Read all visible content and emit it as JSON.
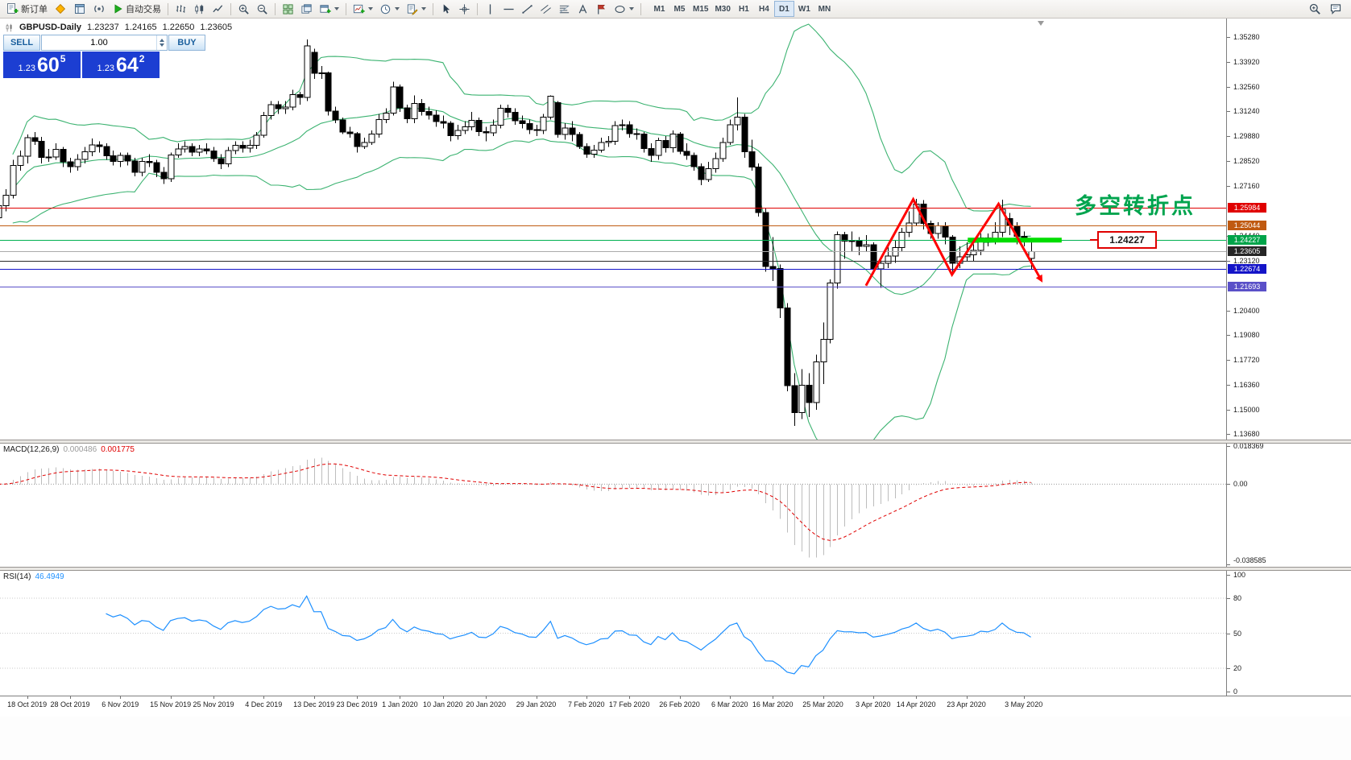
{
  "toolbar": {
    "new_order_label": "新订单",
    "autotrading_label": "自动交易",
    "timeframes": [
      "M1",
      "M5",
      "M15",
      "M30",
      "H1",
      "H4",
      "D1",
      "W1",
      "MN"
    ],
    "active_timeframe": "D1",
    "icons": [
      "new-order",
      "metaeditor",
      "market-watch",
      "broadcast",
      "autotrading",
      "bar-chart",
      "candlestick-chart",
      "line-chart",
      "zoom-in",
      "zoom-out",
      "tile-windows",
      "cascade-windows",
      "new-window",
      "indicators",
      "periods",
      "templates",
      "cursor",
      "crosshair",
      "vertical-line",
      "horizontal-line",
      "trendline",
      "channel",
      "fibonacci",
      "text",
      "label",
      "shapes",
      "search",
      "chat"
    ]
  },
  "chart": {
    "title_symbol": "GBPUSD-Daily",
    "ohlc": {
      "open": "1.23237",
      "high": "1.24165",
      "low": "1.22650",
      "close": "1.23605"
    }
  },
  "trade_panel": {
    "sell_label": "SELL",
    "buy_label": "BUY",
    "volume": "1.00",
    "sell_price": {
      "small": "1.23",
      "big": "60",
      "sup": "5"
    },
    "buy_price": {
      "small": "1.23",
      "big": "64",
      "sup": "2"
    }
  },
  "annotations": {
    "turning_point_text": "多空转折点",
    "turning_point_color": "#00a44e",
    "price_box_label": "1.24227",
    "zigzag": [
      [
        121,
        1.2175
      ],
      [
        127.6,
        1.2645
      ],
      [
        133,
        1.2235
      ],
      [
        139.5,
        1.262
      ],
      [
        145.3,
        1.2215
      ]
    ],
    "zigzag_color": "#ff0000",
    "green_segment": {
      "from_bar": 135.2,
      "to_bar": 148.3,
      "price": 1.24227,
      "color": "#00dd00"
    }
  },
  "hlines": [
    {
      "price": 1.25984,
      "color": "#e00000",
      "width": 1
    },
    {
      "price": 1.25044,
      "color": "#c05a11",
      "width": 1
    },
    {
      "price": 1.24227,
      "color": "#00b050",
      "width": 1
    },
    {
      "price": 1.23605,
      "color": "#ababab",
      "width": 1
    },
    {
      "price": 1.2312,
      "color": "#2a2a2a",
      "width": 1
    },
    {
      "price": 1.22674,
      "color": "#1414c8",
      "width": 1
    },
    {
      "price": 1.21693,
      "color": "#5a50c8",
      "width": 1
    }
  ],
  "price_scale": {
    "ticks": [
      "1.35280",
      "1.33920",
      "1.32560",
      "1.31240",
      "1.29880",
      "1.28520",
      "1.27160",
      "1.24440",
      "1.23120",
      "1.20400",
      "1.19080",
      "1.17720",
      "1.16360",
      "1.15000",
      "1.13680"
    ],
    "badges": [
      {
        "label": "1.25984",
        "color": "#e00000"
      },
      {
        "label": "1.25044",
        "color": "#c05a11"
      },
      {
        "label": "1.24227",
        "color": "#00a44a"
      },
      {
        "label": "1.23605",
        "color": "#262626"
      },
      {
        "label": "1.22674",
        "color": "#1414c8"
      },
      {
        "label": "1.21693",
        "color": "#5a50c8"
      }
    ]
  },
  "macd": {
    "label": "MACD(12,26,9)",
    "value_main": "0.000486",
    "value_signal": "0.001775",
    "scale_top": "0.018369",
    "scale_zero": "0.00",
    "scale_bottom": "-0.038585",
    "vmax": 0.018369,
    "vmin": -0.038585
  },
  "rsi": {
    "label": "RSI(14)",
    "value": "46.4949",
    "scale": [
      "100",
      "80",
      "50",
      "20",
      "0"
    ],
    "levels": [
      80,
      50,
      20
    ]
  },
  "time_axis": {
    "labels": [
      {
        "text": "18 Oct 2019",
        "bar": 4
      },
      {
        "text": "28 Oct 2019",
        "bar": 10
      },
      {
        "text": "6 Nov 2019",
        "bar": 17
      },
      {
        "text": "15 Nov 2019",
        "bar": 24
      },
      {
        "text": "25 Nov 2019",
        "bar": 30
      },
      {
        "text": "4 Dec 2019",
        "bar": 37
      },
      {
        "text": "13 Dec 2019",
        "bar": 44
      },
      {
        "text": "23 Dec 2019",
        "bar": 50
      },
      {
        "text": "1 Jan 2020",
        "bar": 56
      },
      {
        "text": "10 Jan 2020",
        "bar": 62
      },
      {
        "text": "20 Jan 2020",
        "bar": 68
      },
      {
        "text": "29 Jan 2020",
        "bar": 75
      },
      {
        "text": "7 Feb 2020",
        "bar": 82
      },
      {
        "text": "17 Feb 2020",
        "bar": 88
      },
      {
        "text": "26 Feb 2020",
        "bar": 95
      },
      {
        "text": "6 Mar 2020",
        "bar": 102
      },
      {
        "text": "16 Mar 2020",
        "bar": 108
      },
      {
        "text": "25 Mar 2020",
        "bar": 115
      },
      {
        "text": "3 Apr 2020",
        "bar": 122
      },
      {
        "text": "14 Apr 2020",
        "bar": 128
      },
      {
        "text": "23 Apr 2020",
        "bar": 135
      },
      {
        "text": "3 May 2020",
        "bar": 143
      }
    ]
  },
  "chart_data": {
    "type": "candlestick",
    "symbol": "GBPUSD",
    "timeframe": "Daily",
    "price_axis": {
      "min": 1.1341,
      "max": 1.3624
    },
    "indicators": {
      "bollinger_period": 20,
      "bollinger_dev": 2,
      "bollinger_color": "#3cb371",
      "macd": [
        12,
        26,
        9
      ],
      "rsi_period": 14,
      "rsi_color": "#1e90ff"
    },
    "ohlc": [
      [
        1.2545,
        1.264,
        1.252,
        1.261
      ],
      [
        1.261,
        1.27,
        1.258,
        1.2667
      ],
      [
        1.2667,
        1.286,
        1.265,
        1.283
      ],
      [
        1.283,
        1.291,
        1.28,
        1.288
      ],
      [
        1.288,
        1.2998,
        1.284,
        1.298
      ],
      [
        1.298,
        1.3012,
        1.294,
        1.296
      ],
      [
        1.296,
        1.2985,
        1.284,
        1.2872
      ],
      [
        1.2872,
        1.292,
        1.285,
        1.2876
      ],
      [
        1.2876,
        1.295,
        1.286,
        1.2916
      ],
      [
        1.2916,
        1.293,
        1.282,
        1.285
      ],
      [
        1.285,
        1.287,
        1.279,
        1.2822
      ],
      [
        1.2822,
        1.289,
        1.28,
        1.2863
      ],
      [
        1.2863,
        1.293,
        1.284,
        1.2903
      ],
      [
        1.2903,
        1.2975,
        1.288,
        1.294
      ],
      [
        1.294,
        1.296,
        1.29,
        1.2932
      ],
      [
        1.2932,
        1.295,
        1.286,
        1.2881
      ],
      [
        1.2881,
        1.291,
        1.283,
        1.2851
      ],
      [
        1.2851,
        1.29,
        1.282,
        1.2885
      ],
      [
        1.2885,
        1.29,
        1.283,
        1.2854
      ],
      [
        1.2854,
        1.287,
        1.2769,
        1.2793
      ],
      [
        1.2793,
        1.287,
        1.277,
        1.2852
      ],
      [
        1.2852,
        1.289,
        1.282,
        1.2845
      ],
      [
        1.2845,
        1.286,
        1.2765,
        1.2792
      ],
      [
        1.2792,
        1.282,
        1.2728,
        1.2757
      ],
      [
        1.2757,
        1.29,
        1.274,
        1.2886
      ],
      [
        1.2886,
        1.295,
        1.287,
        1.292
      ],
      [
        1.292,
        1.296,
        1.29,
        1.2932
      ],
      [
        1.2932,
        1.295,
        1.288,
        1.2901
      ],
      [
        1.2901,
        1.294,
        1.288,
        1.2918
      ],
      [
        1.2918,
        1.295,
        1.289,
        1.2908
      ],
      [
        1.2908,
        1.293,
        1.285,
        1.2867
      ],
      [
        1.2867,
        1.289,
        1.281,
        1.2837
      ],
      [
        1.2837,
        1.293,
        1.282,
        1.291
      ],
      [
        1.291,
        1.296,
        1.289,
        1.2938
      ],
      [
        1.2938,
        1.296,
        1.29,
        1.2923
      ],
      [
        1.2923,
        1.297,
        1.29,
        1.2938
      ],
      [
        1.2938,
        1.301,
        1.292,
        1.2993
      ],
      [
        1.2993,
        1.312,
        1.298,
        1.31
      ],
      [
        1.31,
        1.318,
        1.308,
        1.3159
      ],
      [
        1.3159,
        1.318,
        1.311,
        1.3139
      ],
      [
        1.3139,
        1.318,
        1.311,
        1.3147
      ],
      [
        1.3147,
        1.324,
        1.313,
        1.3215
      ],
      [
        1.3215,
        1.323,
        1.316,
        1.3199
      ],
      [
        1.3199,
        1.3515,
        1.318,
        1.348
      ],
      [
        1.3445,
        1.3465,
        1.33,
        1.3331
      ],
      [
        1.3331,
        1.337,
        1.33,
        1.3333
      ],
      [
        1.3333,
        1.334,
        1.31,
        1.3125
      ],
      [
        1.3125,
        1.315,
        1.306,
        1.3077
      ],
      [
        1.3077,
        1.309,
        1.3,
        1.3012
      ],
      [
        1.3012,
        1.304,
        1.298,
        1.3003
      ],
      [
        1.3003,
        1.301,
        1.29,
        1.2932
      ],
      [
        1.2932,
        1.298,
        1.292,
        1.2953
      ],
      [
        1.2953,
        1.302,
        1.294,
        1.2999
      ],
      [
        1.2999,
        1.311,
        1.298,
        1.3079
      ],
      [
        1.3079,
        1.314,
        1.306,
        1.3113
      ],
      [
        1.3113,
        1.3284,
        1.31,
        1.3257
      ],
      [
        1.3257,
        1.327,
        1.312,
        1.3143
      ],
      [
        1.3143,
        1.316,
        1.306,
        1.3083
      ],
      [
        1.3083,
        1.321,
        1.306,
        1.3166
      ],
      [
        1.3166,
        1.319,
        1.31,
        1.3122
      ],
      [
        1.3122,
        1.315,
        1.308,
        1.3104
      ],
      [
        1.3104,
        1.313,
        1.304,
        1.3069
      ],
      [
        1.3069,
        1.31,
        1.303,
        1.3059
      ],
      [
        1.3059,
        1.307,
        1.296,
        1.2992
      ],
      [
        1.2992,
        1.305,
        1.297,
        1.3019
      ],
      [
        1.3019,
        1.307,
        1.3,
        1.304
      ],
      [
        1.304,
        1.312,
        1.302,
        1.3074
      ],
      [
        1.3074,
        1.309,
        1.299,
        1.3013
      ],
      [
        1.3013,
        1.304,
        1.296,
        1.3006
      ],
      [
        1.3006,
        1.308,
        1.299,
        1.3048
      ],
      [
        1.3048,
        1.316,
        1.303,
        1.3141
      ],
      [
        1.3141,
        1.316,
        1.309,
        1.3118
      ],
      [
        1.3118,
        1.314,
        1.305,
        1.3073
      ],
      [
        1.3073,
        1.31,
        1.303,
        1.3057
      ],
      [
        1.3057,
        1.308,
        1.3,
        1.3024
      ],
      [
        1.3024,
        1.305,
        1.299,
        1.3019
      ],
      [
        1.3019,
        1.311,
        1.3,
        1.3092
      ],
      [
        1.3092,
        1.321,
        1.308,
        1.3205
      ],
      [
        1.317,
        1.318,
        1.298,
        1.2997
      ],
      [
        1.2997,
        1.306,
        1.297,
        1.3033
      ],
      [
        1.3033,
        1.307,
        1.296,
        1.2998
      ],
      [
        1.2998,
        1.301,
        1.292,
        1.2932
      ],
      [
        1.2932,
        1.295,
        1.287,
        1.2891
      ],
      [
        1.2891,
        1.294,
        1.287,
        1.2913
      ],
      [
        1.2913,
        1.298,
        1.29,
        1.2955
      ],
      [
        1.2955,
        1.299,
        1.293,
        1.2961
      ],
      [
        1.2961,
        1.307,
        1.294,
        1.3047
      ],
      [
        1.3047,
        1.308,
        1.302,
        1.3051
      ],
      [
        1.3051,
        1.307,
        1.298,
        1.3003
      ],
      [
        1.3003,
        1.303,
        1.297,
        1.2999
      ],
      [
        1.2999,
        1.301,
        1.29,
        1.2921
      ],
      [
        1.2921,
        1.295,
        1.2848,
        1.2883
      ],
      [
        1.2883,
        1.298,
        1.286,
        1.2965
      ],
      [
        1.2965,
        1.299,
        1.29,
        1.2925
      ],
      [
        1.2925,
        1.302,
        1.29,
        1.3001
      ],
      [
        1.3001,
        1.301,
        1.289,
        1.2906
      ],
      [
        1.2906,
        1.295,
        1.286,
        1.2884
      ],
      [
        1.2884,
        1.29,
        1.28,
        1.2823
      ],
      [
        1.2823,
        1.284,
        1.2722,
        1.2753
      ],
      [
        1.2753,
        1.285,
        1.274,
        1.2812
      ],
      [
        1.2812,
        1.29,
        1.279,
        1.2866
      ],
      [
        1.2866,
        1.298,
        1.285,
        1.2954
      ],
      [
        1.2954,
        1.308,
        1.294,
        1.3051
      ],
      [
        1.3051,
        1.32,
        1.302,
        1.3092
      ],
      [
        1.3092,
        1.311,
        1.287,
        1.2904
      ],
      [
        1.2904,
        1.297,
        1.28,
        1.2821
      ],
      [
        1.2821,
        1.284,
        1.255,
        1.2574
      ],
      [
        1.2574,
        1.26,
        1.225,
        1.2279
      ],
      [
        1.2279,
        1.244,
        1.22,
        1.2269
      ],
      [
        1.2269,
        1.229,
        1.2,
        1.2053
      ],
      [
        1.2053,
        1.208,
        1.16,
        1.1631
      ],
      [
        1.1631,
        1.17,
        1.1412,
        1.1485
      ],
      [
        1.1485,
        1.172,
        1.145,
        1.1633
      ],
      [
        1.1633,
        1.17,
        1.146,
        1.154
      ],
      [
        1.154,
        1.18,
        1.15,
        1.176
      ],
      [
        1.176,
        1.1975,
        1.164,
        1.1883
      ],
      [
        1.1883,
        1.221,
        1.186,
        1.2189
      ],
      [
        1.2189,
        1.247,
        1.216,
        1.2453
      ],
      [
        1.2453,
        1.2467,
        1.232,
        1.2417
      ],
      [
        1.2417,
        1.247,
        1.236,
        1.242
      ],
      [
        1.242,
        1.244,
        1.234,
        1.239
      ],
      [
        1.239,
        1.245,
        1.236,
        1.2398
      ],
      [
        1.2398,
        1.241,
        1.224,
        1.2267
      ],
      [
        1.2267,
        1.233,
        1.2163,
        1.2296
      ],
      [
        1.2296,
        1.239,
        1.227,
        1.2336
      ],
      [
        1.2336,
        1.242,
        1.23,
        1.2383
      ],
      [
        1.2383,
        1.249,
        1.236,
        1.2466
      ],
      [
        1.2466,
        1.258,
        1.244,
        1.2516
      ],
      [
        1.2516,
        1.2648,
        1.25,
        1.262
      ],
      [
        1.262,
        1.264,
        1.248,
        1.2513
      ],
      [
        1.2513,
        1.253,
        1.243,
        1.2459
      ],
      [
        1.2459,
        1.252,
        1.243,
        1.25
      ],
      [
        1.25,
        1.252,
        1.24,
        1.244
      ],
      [
        1.244,
        1.245,
        1.2247,
        1.2297
      ],
      [
        1.2297,
        1.239,
        1.227,
        1.2331
      ],
      [
        1.2331,
        1.241,
        1.231,
        1.2344
      ],
      [
        1.2344,
        1.24,
        1.231,
        1.2367
      ],
      [
        1.2367,
        1.246,
        1.234,
        1.2436
      ],
      [
        1.2436,
        1.246,
        1.239,
        1.2423
      ],
      [
        1.2423,
        1.252,
        1.24,
        1.2466
      ],
      [
        1.2466,
        1.2643,
        1.244,
        1.259
      ],
      [
        1.254,
        1.257,
        1.245,
        1.25
      ],
      [
        1.25,
        1.252,
        1.24,
        1.2443
      ],
      [
        1.2443,
        1.247,
        1.239,
        1.2434
      ],
      [
        1.23237,
        1.24165,
        1.2265,
        1.23605
      ]
    ]
  }
}
